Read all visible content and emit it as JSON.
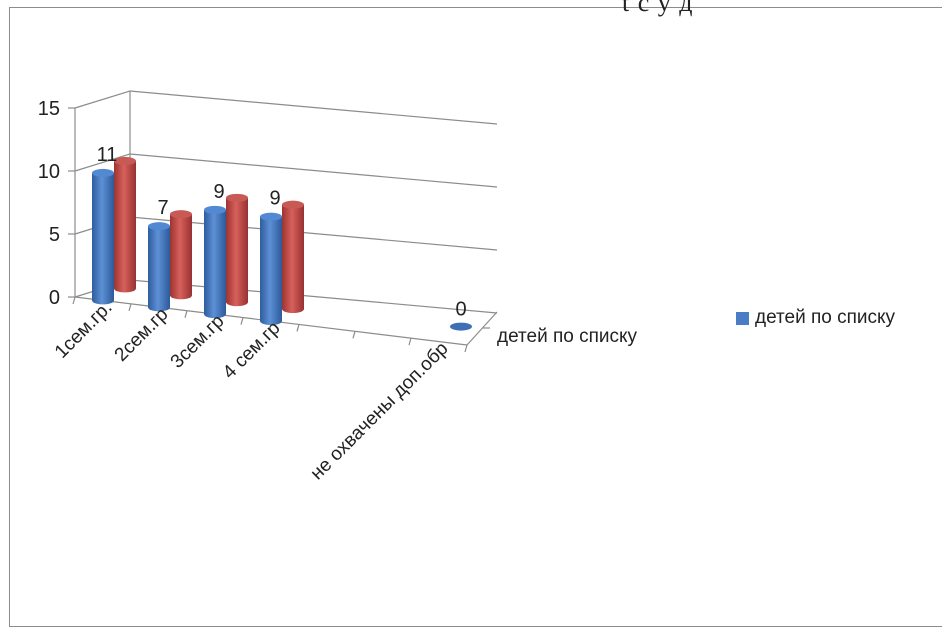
{
  "top_fragment": "t с у   д",
  "chart_data": {
    "type": "bar",
    "style": "3d-cylinder",
    "categories": [
      "1сем.гр.",
      "2сем.гр",
      "3сем.гр",
      "4 сем.гр",
      "",
      "",
      "не охвачены доп.обр"
    ],
    "series": [
      {
        "name": "детей по списку",
        "color": "#4a7dc4",
        "values": [
          11,
          7,
          9,
          9,
          null,
          null,
          0
        ]
      },
      {
        "color": "#c0504d",
        "values": [
          11,
          7,
          9,
          9,
          null,
          null,
          null
        ]
      }
    ],
    "data_labels": [
      "11",
      "7",
      "9",
      "9",
      "",
      "",
      "0"
    ],
    "depth_label": "детей по списку",
    "ylim": [
      0,
      15
    ],
    "yticks": [
      "0",
      "5",
      "10",
      "15"
    ],
    "grid": true,
    "legend": {
      "position": "right",
      "label": "детей по списку",
      "color": "#4a7dc4"
    }
  }
}
